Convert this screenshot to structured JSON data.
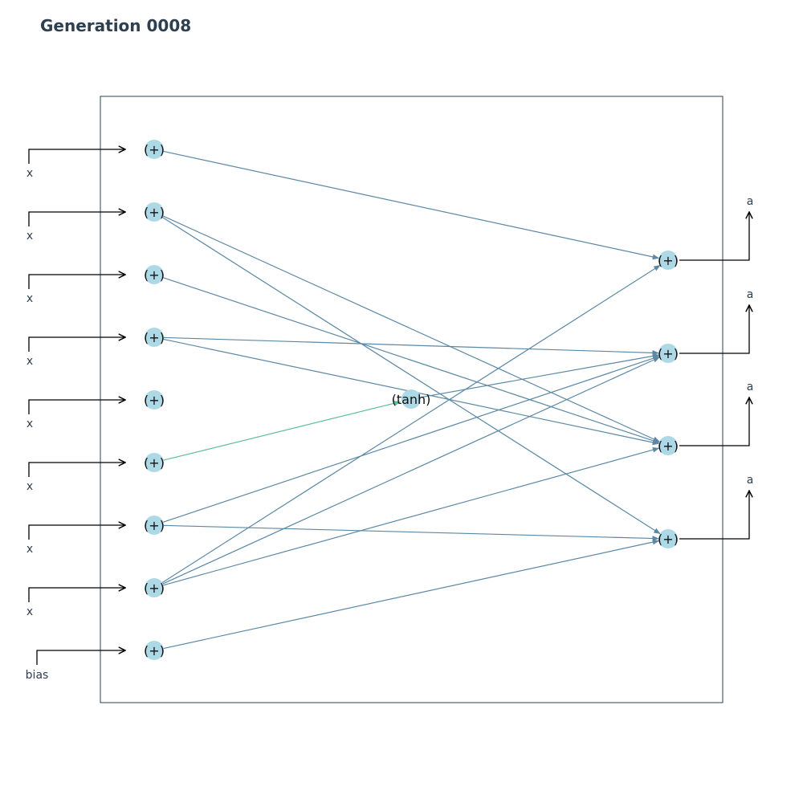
{
  "title": "Generation 0008",
  "colors": {
    "node_fill": "#add8e6",
    "edge": "#5b88a5",
    "edge_special": "#5fbf98",
    "frame": "#2e3f50",
    "arrow": "#000000"
  },
  "input_labels": [
    "x",
    "x",
    "x",
    "x",
    "x",
    "x",
    "x",
    "x",
    "bias"
  ],
  "output_labels": [
    "a",
    "a",
    "a",
    "a"
  ],
  "input_nodes": [
    "(+)",
    "(+)",
    "(+)",
    "(+)",
    "(+)",
    "(+)",
    "(+)",
    "(+)",
    "(+)"
  ],
  "hidden_nodes": [
    "(tanh)"
  ],
  "output_nodes": [
    "(+)",
    "(+)",
    "(+)",
    "(+)"
  ],
  "connections": [
    {
      "from": "in0",
      "to": "out0"
    },
    {
      "from": "in1",
      "to": "out2"
    },
    {
      "from": "in1",
      "to": "out3"
    },
    {
      "from": "in2",
      "to": "out2"
    },
    {
      "from": "in3",
      "to": "out1"
    },
    {
      "from": "in3",
      "to": "out2"
    },
    {
      "from": "in5",
      "to": "h0",
      "special": true
    },
    {
      "from": "h0",
      "to": "out1"
    },
    {
      "from": "in6",
      "to": "out1"
    },
    {
      "from": "in6",
      "to": "out3"
    },
    {
      "from": "in7",
      "to": "out0"
    },
    {
      "from": "in7",
      "to": "out1"
    },
    {
      "from": "in7",
      "to": "out2"
    },
    {
      "from": "in8",
      "to": "out3"
    }
  ]
}
